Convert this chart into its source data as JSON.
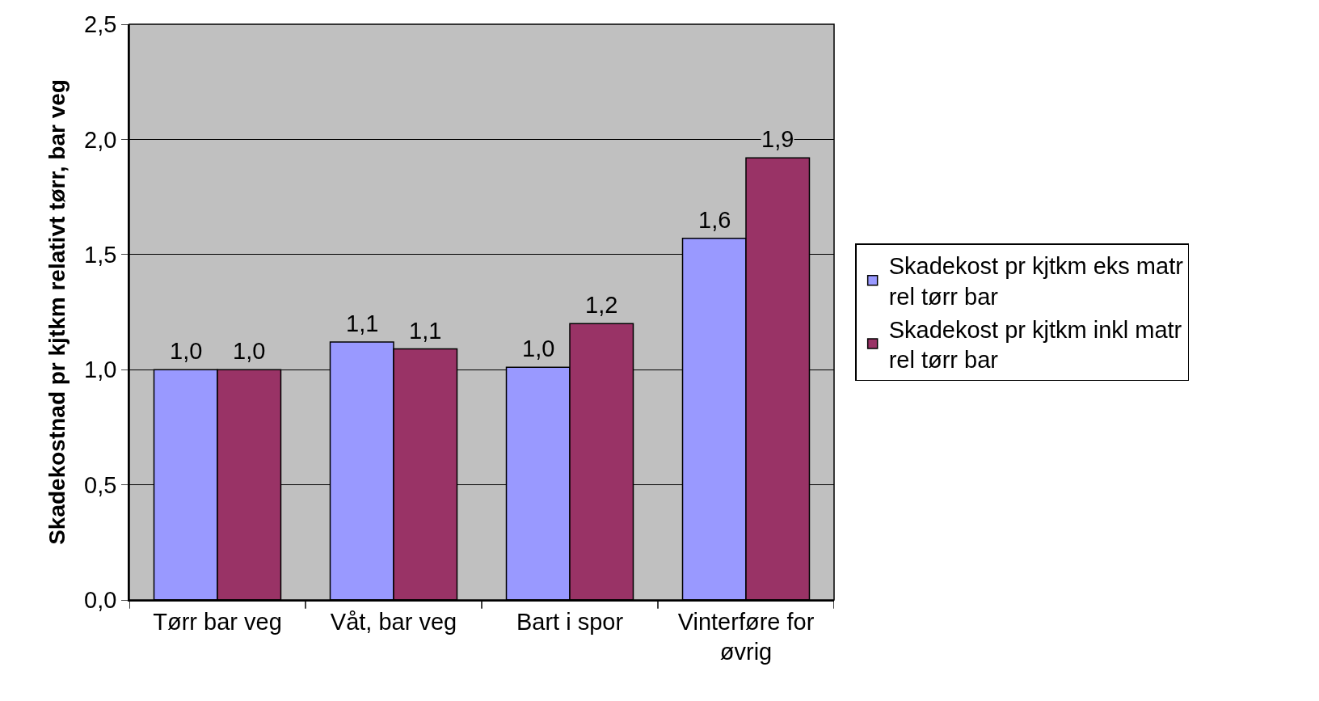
{
  "chart_data": {
    "type": "bar",
    "ylabel": "Skadekostnad pr kjtkm relativt tørr, bar veg",
    "categories": [
      "Tørr bar veg",
      "Våt, bar veg",
      "Bart i spor",
      "Vinterføre for øvrig"
    ],
    "series": [
      {
        "name": "Skadekost pr kjtkm eks matr rel tørr bar",
        "color": "#9999ff",
        "values": [
          1.0,
          1.12,
          1.01,
          1.57
        ],
        "value_labels": [
          "1,0",
          "1,1",
          "1,0",
          "1,6"
        ]
      },
      {
        "name": "Skadekost pr kjtkm inkl matr rel tørr bar",
        "color": "#993366",
        "values": [
          1.0,
          1.09,
          1.2,
          1.92
        ],
        "value_labels": [
          "1,0",
          "1,1",
          "1,2",
          "1,9"
        ]
      }
    ],
    "ylim": [
      0,
      2.5
    ],
    "yticks": [
      {
        "value": 0,
        "label": "0,0"
      },
      {
        "value": 0.5,
        "label": "0,5"
      },
      {
        "value": 1.0,
        "label": "1,0"
      },
      {
        "value": 1.5,
        "label": "1,5"
      },
      {
        "value": 2.0,
        "label": "2,0"
      },
      {
        "value": 2.5,
        "label": "2,5"
      }
    ],
    "grid": "y",
    "legend": "right"
  }
}
